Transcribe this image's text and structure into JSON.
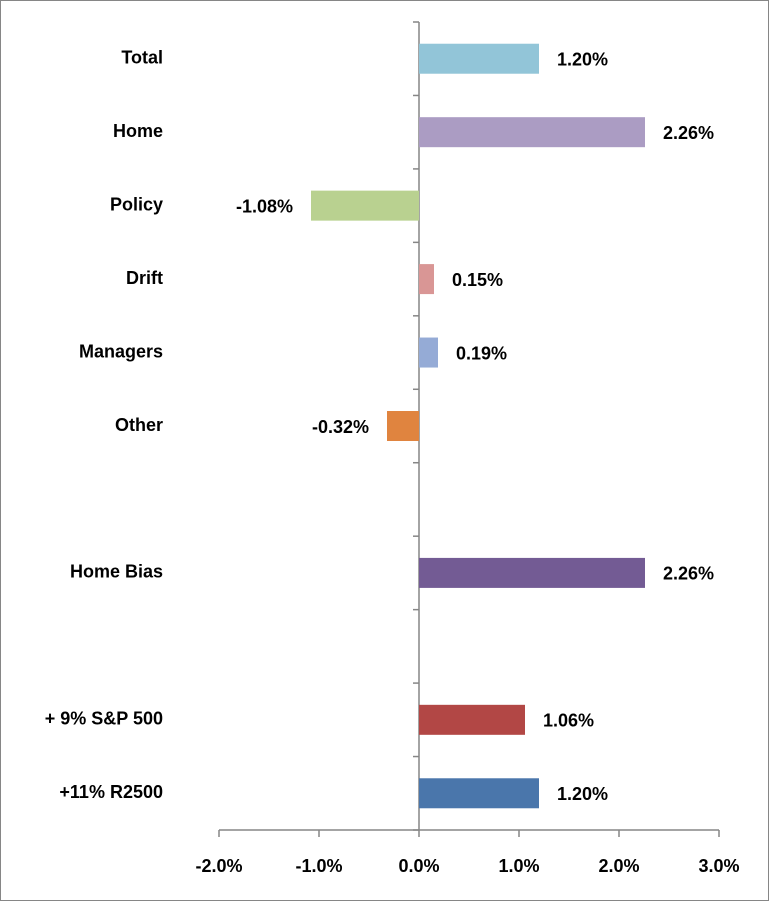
{
  "chart_data": {
    "type": "barh",
    "categories": [
      "Total",
      "Home",
      "Policy",
      "Drift",
      "Managers",
      "Other",
      null,
      "Home Bias",
      null,
      "+ 9% S&P 500",
      "+11% R2500"
    ],
    "values": [
      1.2,
      2.26,
      -1.08,
      0.15,
      0.19,
      -0.32,
      null,
      2.26,
      null,
      1.06,
      1.2
    ],
    "value_labels": [
      "1.20%",
      "2.26%",
      "-1.08%",
      "0.15%",
      "0.19%",
      "-0.32%",
      null,
      "2.26%",
      null,
      "1.06%",
      "1.20%"
    ],
    "colors": [
      "#92c5d8",
      "#ab9cc3",
      "#b9d190",
      "#d99695",
      "#95abd6",
      "#e0843f",
      null,
      "#735b94",
      null,
      "#b24745",
      "#4a76ab"
    ],
    "xlim": [
      -2,
      3
    ],
    "xticks": [
      {
        "value": -2,
        "label": "-2.0%"
      },
      {
        "value": -1,
        "label": "-1.0%"
      },
      {
        "value": 0,
        "label": "0.0%"
      },
      {
        "value": 1,
        "label": "1.0%"
      },
      {
        "value": 2,
        "label": "2.0%"
      },
      {
        "value": 3,
        "label": "3.0%"
      }
    ]
  }
}
